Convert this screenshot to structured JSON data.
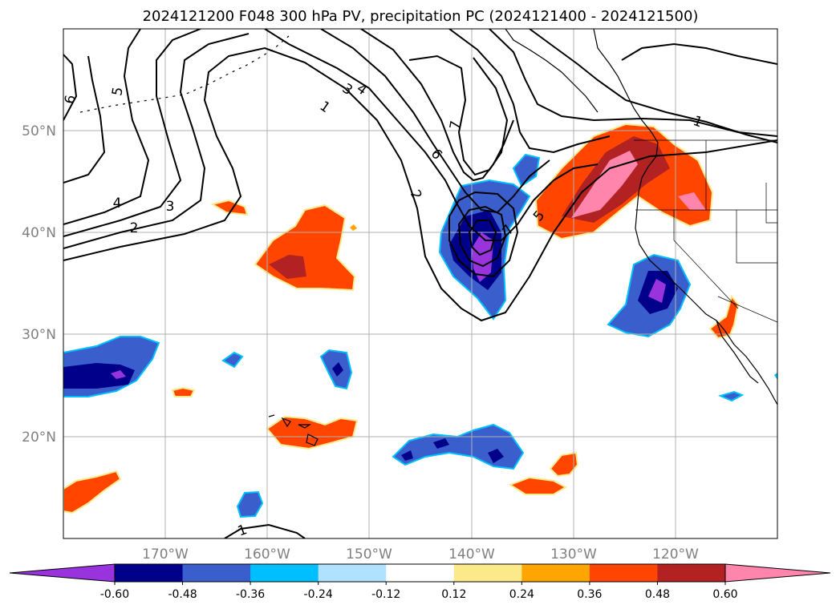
{
  "figure": {
    "title": "2024121200 F048 300 hPa PV, precipitation PC (2024121400 - 2024121500)"
  },
  "map": {
    "lat_labels": [
      "50°N",
      "40°N",
      "30°N",
      "20°N"
    ],
    "lon_labels": [
      "170°W",
      "160°W",
      "150°W",
      "140°W",
      "130°W",
      "120°W"
    ],
    "extent": {
      "lon_min": -180,
      "lon_max": -110,
      "lat_min": 10,
      "lat_max": 60
    },
    "gridlines": true
  },
  "contours": {
    "field": "300 hPa PV",
    "color": "#000000",
    "labels": [
      "5",
      "6",
      "4",
      "3",
      "2",
      "1",
      "3",
      "4",
      "7",
      "6",
      "2",
      "7",
      "5",
      "1",
      "1"
    ]
  },
  "colorbar": {
    "ticks": [
      "-0.60",
      "-0.48",
      "-0.36",
      "-0.24",
      "-0.12",
      "0.12",
      "0.24",
      "0.36",
      "0.48",
      "0.60"
    ],
    "colors": [
      "#9933dd",
      "#00008b",
      "#3a5fcd",
      "#00bfff",
      "#b0e2ff",
      "#ffffff",
      "#fce98a",
      "#ffa500",
      "#ff4500",
      "#b22222",
      "#ff85ad"
    ]
  }
}
